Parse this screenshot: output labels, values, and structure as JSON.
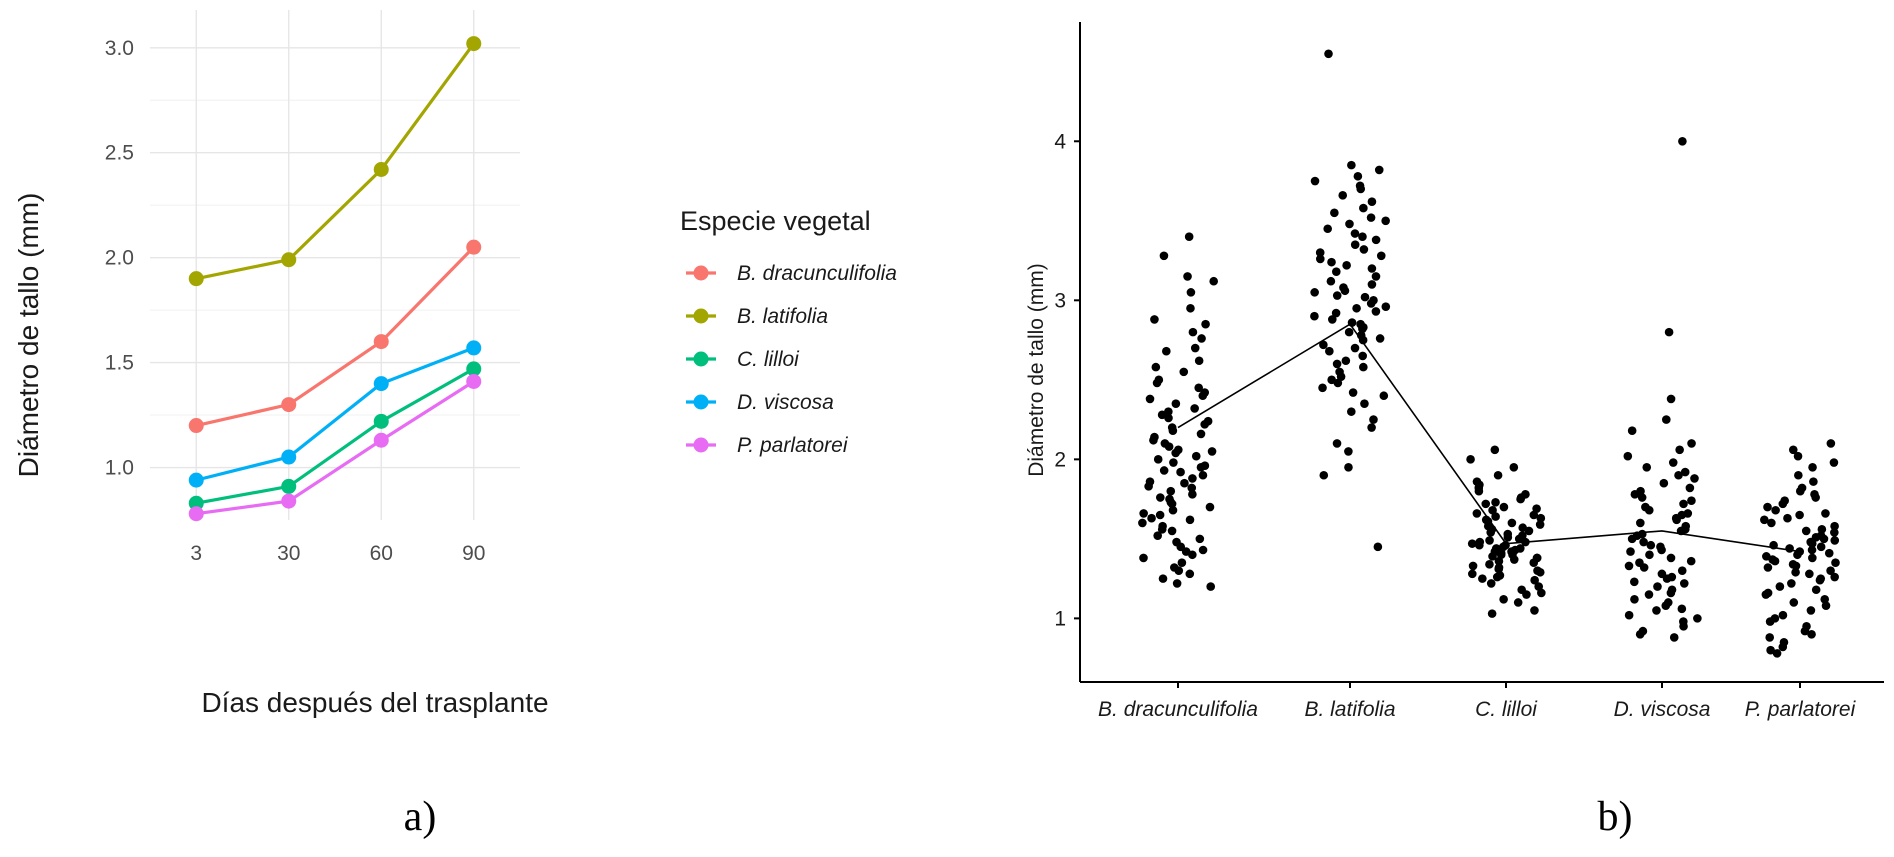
{
  "chart_data": [
    {
      "type": "line",
      "panel_label": "a)",
      "title": "",
      "xlabel": "Días después del trasplante",
      "ylabel": "Diámetro de tallo (mm)",
      "categories": [
        "3",
        "30",
        "60",
        "90"
      ],
      "yticks": [
        "1.0",
        "1.5",
        "2.0",
        "2.5",
        "3.0"
      ],
      "ylim": [
        0.75,
        3.18
      ],
      "grid": true,
      "legend_title": "Especie vegetal",
      "legend_position": "right",
      "series": [
        {
          "name": "B. dracunculifolia",
          "color": "#F8766D",
          "values": [
            1.2,
            1.3,
            1.6,
            2.05
          ]
        },
        {
          "name": "B. latifolia",
          "color": "#A3A500",
          "values": [
            1.9,
            1.99,
            2.42,
            3.02
          ]
        },
        {
          "name": "C. lilloi",
          "color": "#00BF7D",
          "values": [
            0.83,
            0.91,
            1.22,
            1.47
          ]
        },
        {
          "name": "D. viscosa",
          "color": "#00B0F6",
          "values": [
            0.94,
            1.05,
            1.4,
            1.57
          ]
        },
        {
          "name": "P. parlatorei",
          "color": "#E76BF3",
          "values": [
            0.78,
            0.84,
            1.13,
            1.41
          ]
        }
      ]
    },
    {
      "type": "scatter",
      "panel_label": "b)",
      "title": "",
      "xlabel": "",
      "ylabel": "Diámetro de tallo (mm)",
      "categories": [
        "B. dracunculifolia",
        "B. latifolia",
        "C. lilloi",
        "D. viscosa",
        "P. parlatorei"
      ],
      "yticks": [
        "1",
        "2",
        "3",
        "4"
      ],
      "ylim": [
        0.6,
        4.75
      ],
      "grid": false,
      "point_color": "#000000",
      "mean_line": [
        2.2,
        2.85,
        1.47,
        1.55,
        1.42
      ],
      "groups": [
        {
          "name": "B. dracunculifolia",
          "values": [
            3.4,
            3.28,
            3.15,
            3.12,
            3.05,
            2.95,
            2.88,
            2.85,
            2.8,
            2.76,
            2.7,
            2.68,
            2.62,
            2.58,
            2.55,
            2.5,
            2.48,
            2.45,
            2.42,
            2.4,
            2.38,
            2.35,
            2.32,
            2.3,
            2.28,
            2.26,
            2.24,
            2.22,
            2.2,
            2.18,
            2.16,
            2.14,
            2.12,
            2.1,
            2.08,
            2.06,
            2.05,
            2.04,
            2.02,
            2.0,
            1.98,
            1.96,
            1.95,
            1.93,
            1.92,
            1.9,
            1.88,
            1.86,
            1.85,
            1.83,
            1.82,
            1.8,
            1.78,
            1.76,
            1.75,
            1.73,
            1.72,
            1.7,
            1.68,
            1.66,
            1.65,
            1.63,
            1.62,
            1.6,
            1.58,
            1.56,
            1.55,
            1.52,
            1.5,
            1.48,
            1.45,
            1.43,
            1.42,
            1.4,
            1.38,
            1.35,
            1.32,
            1.3,
            1.28,
            1.25,
            1.22,
            1.2
          ]
        },
        {
          "name": "B. latifolia",
          "values": [
            4.55,
            3.85,
            3.82,
            3.78,
            3.75,
            3.72,
            3.7,
            3.66,
            3.62,
            3.58,
            3.55,
            3.52,
            3.5,
            3.48,
            3.45,
            3.42,
            3.4,
            3.38,
            3.35,
            3.32,
            3.3,
            3.28,
            3.26,
            3.24,
            3.22,
            3.2,
            3.18,
            3.15,
            3.12,
            3.1,
            3.08,
            3.06,
            3.05,
            3.03,
            3.02,
            3.0,
            2.98,
            2.96,
            2.95,
            2.93,
            2.92,
            2.9,
            2.88,
            2.86,
            2.85,
            2.83,
            2.82,
            2.8,
            2.78,
            2.76,
            2.75,
            2.72,
            2.7,
            2.68,
            2.65,
            2.62,
            2.6,
            2.58,
            2.55,
            2.52,
            2.5,
            2.48,
            2.45,
            2.42,
            2.4,
            2.35,
            2.3,
            2.25,
            2.2,
            2.1,
            2.05,
            1.95,
            1.9,
            1.45
          ]
        },
        {
          "name": "C. lilloi",
          "values": [
            2.06,
            2.0,
            1.95,
            1.9,
            1.86,
            1.84,
            1.82,
            1.8,
            1.78,
            1.76,
            1.75,
            1.73,
            1.72,
            1.7,
            1.69,
            1.68,
            1.66,
            1.65,
            1.64,
            1.63,
            1.62,
            1.61,
            1.6,
            1.59,
            1.58,
            1.57,
            1.56,
            1.55,
            1.54,
            1.53,
            1.52,
            1.51,
            1.5,
            1.5,
            1.49,
            1.48,
            1.48,
            1.47,
            1.46,
            1.46,
            1.45,
            1.44,
            1.44,
            1.43,
            1.42,
            1.42,
            1.41,
            1.4,
            1.4,
            1.39,
            1.38,
            1.38,
            1.37,
            1.36,
            1.35,
            1.34,
            1.33,
            1.32,
            1.31,
            1.3,
            1.29,
            1.28,
            1.27,
            1.26,
            1.25,
            1.24,
            1.22,
            1.2,
            1.18,
            1.16,
            1.15,
            1.12,
            1.1,
            1.05,
            1.03
          ]
        },
        {
          "name": "D. viscosa",
          "values": [
            4.0,
            2.8,
            2.38,
            2.25,
            2.18,
            2.1,
            2.06,
            2.02,
            1.98,
            1.95,
            1.92,
            1.9,
            1.88,
            1.85,
            1.82,
            1.8,
            1.78,
            1.76,
            1.74,
            1.72,
            1.7,
            1.68,
            1.66,
            1.65,
            1.63,
            1.62,
            1.6,
            1.58,
            1.56,
            1.55,
            1.53,
            1.52,
            1.5,
            1.48,
            1.46,
            1.45,
            1.43,
            1.42,
            1.4,
            1.38,
            1.36,
            1.35,
            1.33,
            1.32,
            1.3,
            1.28,
            1.26,
            1.25,
            1.23,
            1.22,
            1.2,
            1.18,
            1.16,
            1.15,
            1.12,
            1.1,
            1.08,
            1.06,
            1.05,
            1.02,
            1.0,
            0.98,
            0.95,
            0.92,
            0.9,
            0.88
          ]
        },
        {
          "name": "P. parlatorei",
          "values": [
            2.1,
            2.06,
            2.02,
            1.98,
            1.95,
            1.9,
            1.86,
            1.82,
            1.8,
            1.78,
            1.76,
            1.74,
            1.72,
            1.7,
            1.68,
            1.66,
            1.65,
            1.63,
            1.62,
            1.6,
            1.58,
            1.56,
            1.55,
            1.54,
            1.52,
            1.51,
            1.5,
            1.49,
            1.48,
            1.47,
            1.46,
            1.45,
            1.44,
            1.43,
            1.42,
            1.41,
            1.4,
            1.39,
            1.38,
            1.37,
            1.36,
            1.35,
            1.34,
            1.33,
            1.32,
            1.3,
            1.29,
            1.28,
            1.26,
            1.25,
            1.24,
            1.22,
            1.2,
            1.18,
            1.16,
            1.15,
            1.12,
            1.1,
            1.08,
            1.05,
            1.02,
            1.0,
            0.98,
            0.95,
            0.92,
            0.9,
            0.88,
            0.85,
            0.82,
            0.8,
            0.78
          ]
        }
      ]
    }
  ]
}
